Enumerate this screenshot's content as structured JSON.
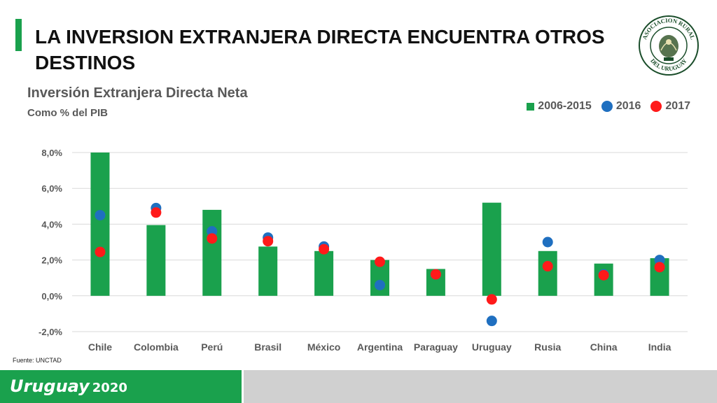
{
  "slide": {
    "title": "LA INVERSION EXTRANJERA DIRECTA ENCUENTRA OTROS DESTINOS",
    "logo_text": "ASOCIACION RURAL DEL URUGUAY",
    "logo_year": "1871",
    "source": "Fuente: UNCTAD",
    "footer_brand": "Uruguay",
    "footer_year": "2020"
  },
  "colors": {
    "accent": "#1aa14d",
    "bar": "#1aa14d",
    "dot_2016": "#1f6fc0",
    "dot_2017": "#ff1a1a",
    "footer_gray": "#d0d0d0"
  },
  "chart_data": {
    "type": "bar",
    "title": "Inversión Extranjera Directa Neta",
    "subtitle": "Como % del PIB",
    "categories": [
      "Chile",
      "Colombia",
      "Perú",
      "Brasil",
      "México",
      "Argentina",
      "Paraguay",
      "Uruguay",
      "Rusia",
      "China",
      "India"
    ],
    "series": [
      {
        "name": "2006-2015",
        "kind": "bar",
        "color": "#1aa14d",
        "values": [
          8.0,
          3.95,
          4.8,
          2.75,
          2.5,
          2.0,
          1.5,
          5.2,
          2.5,
          1.8,
          2.1
        ]
      },
      {
        "name": "2016",
        "kind": "dot",
        "color": "#1f6fc0",
        "values": [
          4.5,
          4.9,
          3.6,
          3.25,
          2.75,
          0.6,
          1.2,
          -1.4,
          3.0,
          1.2,
          2.0
        ]
      },
      {
        "name": "2017",
        "kind": "dot",
        "color": "#ff1a1a",
        "values": [
          2.45,
          4.65,
          3.2,
          3.05,
          2.6,
          1.9,
          1.2,
          -0.2,
          1.65,
          1.15,
          1.6
        ]
      }
    ],
    "yticks": [
      "8,0%",
      "6,0%",
      "4,0%",
      "2,0%",
      "0,0%",
      "-2,0%"
    ],
    "ylim": [
      -2,
      8
    ],
    "grid": true,
    "legend": "top-right"
  }
}
